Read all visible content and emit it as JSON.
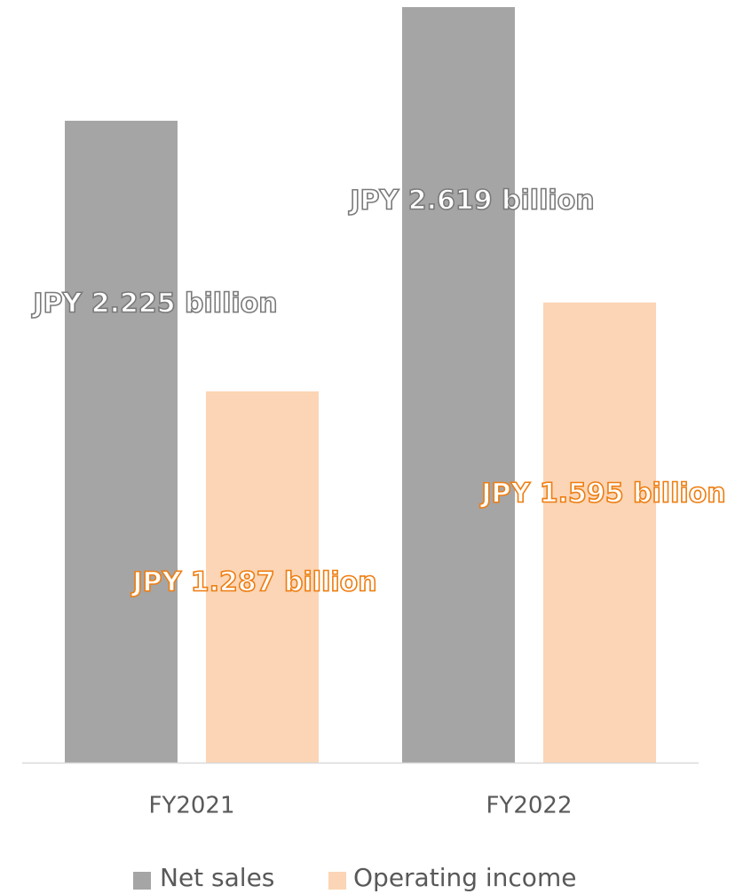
{
  "chart_data": {
    "type": "bar",
    "categories": [
      "FY2021",
      "FY2022"
    ],
    "series": [
      {
        "name": "Net sales",
        "color": "#a5a5a5",
        "label_color": "#7a7a7a",
        "values": [
          2.225,
          2.619
        ],
        "value_labels": [
          "JPY 2.225 billion",
          "JPY 2.619 billion"
        ]
      },
      {
        "name": "Operating income",
        "color": "#fbd5b5",
        "label_color": "#ee7d10",
        "values": [
          1.287,
          1.595
        ],
        "value_labels": [
          "JPY 1.287 billion",
          "JPY 1.595 billion"
        ]
      }
    ],
    "legend": "bottom"
  }
}
